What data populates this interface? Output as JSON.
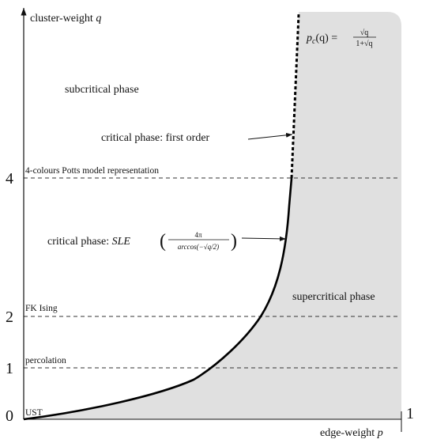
{
  "axes": {
    "y_label": {
      "name": "cluster-weight",
      "var": "q"
    },
    "x_label": {
      "name": "edge-weight",
      "var": "p"
    },
    "y_ticks": [
      "0",
      "1",
      "2",
      "4"
    ],
    "x_ticks": [
      "1"
    ]
  },
  "formula": {
    "lhs": "p",
    "sub": "c",
    "arg": "(q) =",
    "num": "√q",
    "den": "1+√q"
  },
  "regions": {
    "subcritical": "subcritical phase",
    "supercritical": "supercritical phase"
  },
  "annotations": {
    "first_order": "critical phase: first order",
    "sle": {
      "prefix": "critical phase:",
      "name": "SLE",
      "open": "(",
      "num": "4π",
      "den": "arccos(−√q/2)",
      "close": ")"
    }
  },
  "levels": {
    "potts": "4-colours Potts model representation",
    "ising": "FK Ising",
    "percolation": "percolation",
    "ust": "UST"
  }
}
